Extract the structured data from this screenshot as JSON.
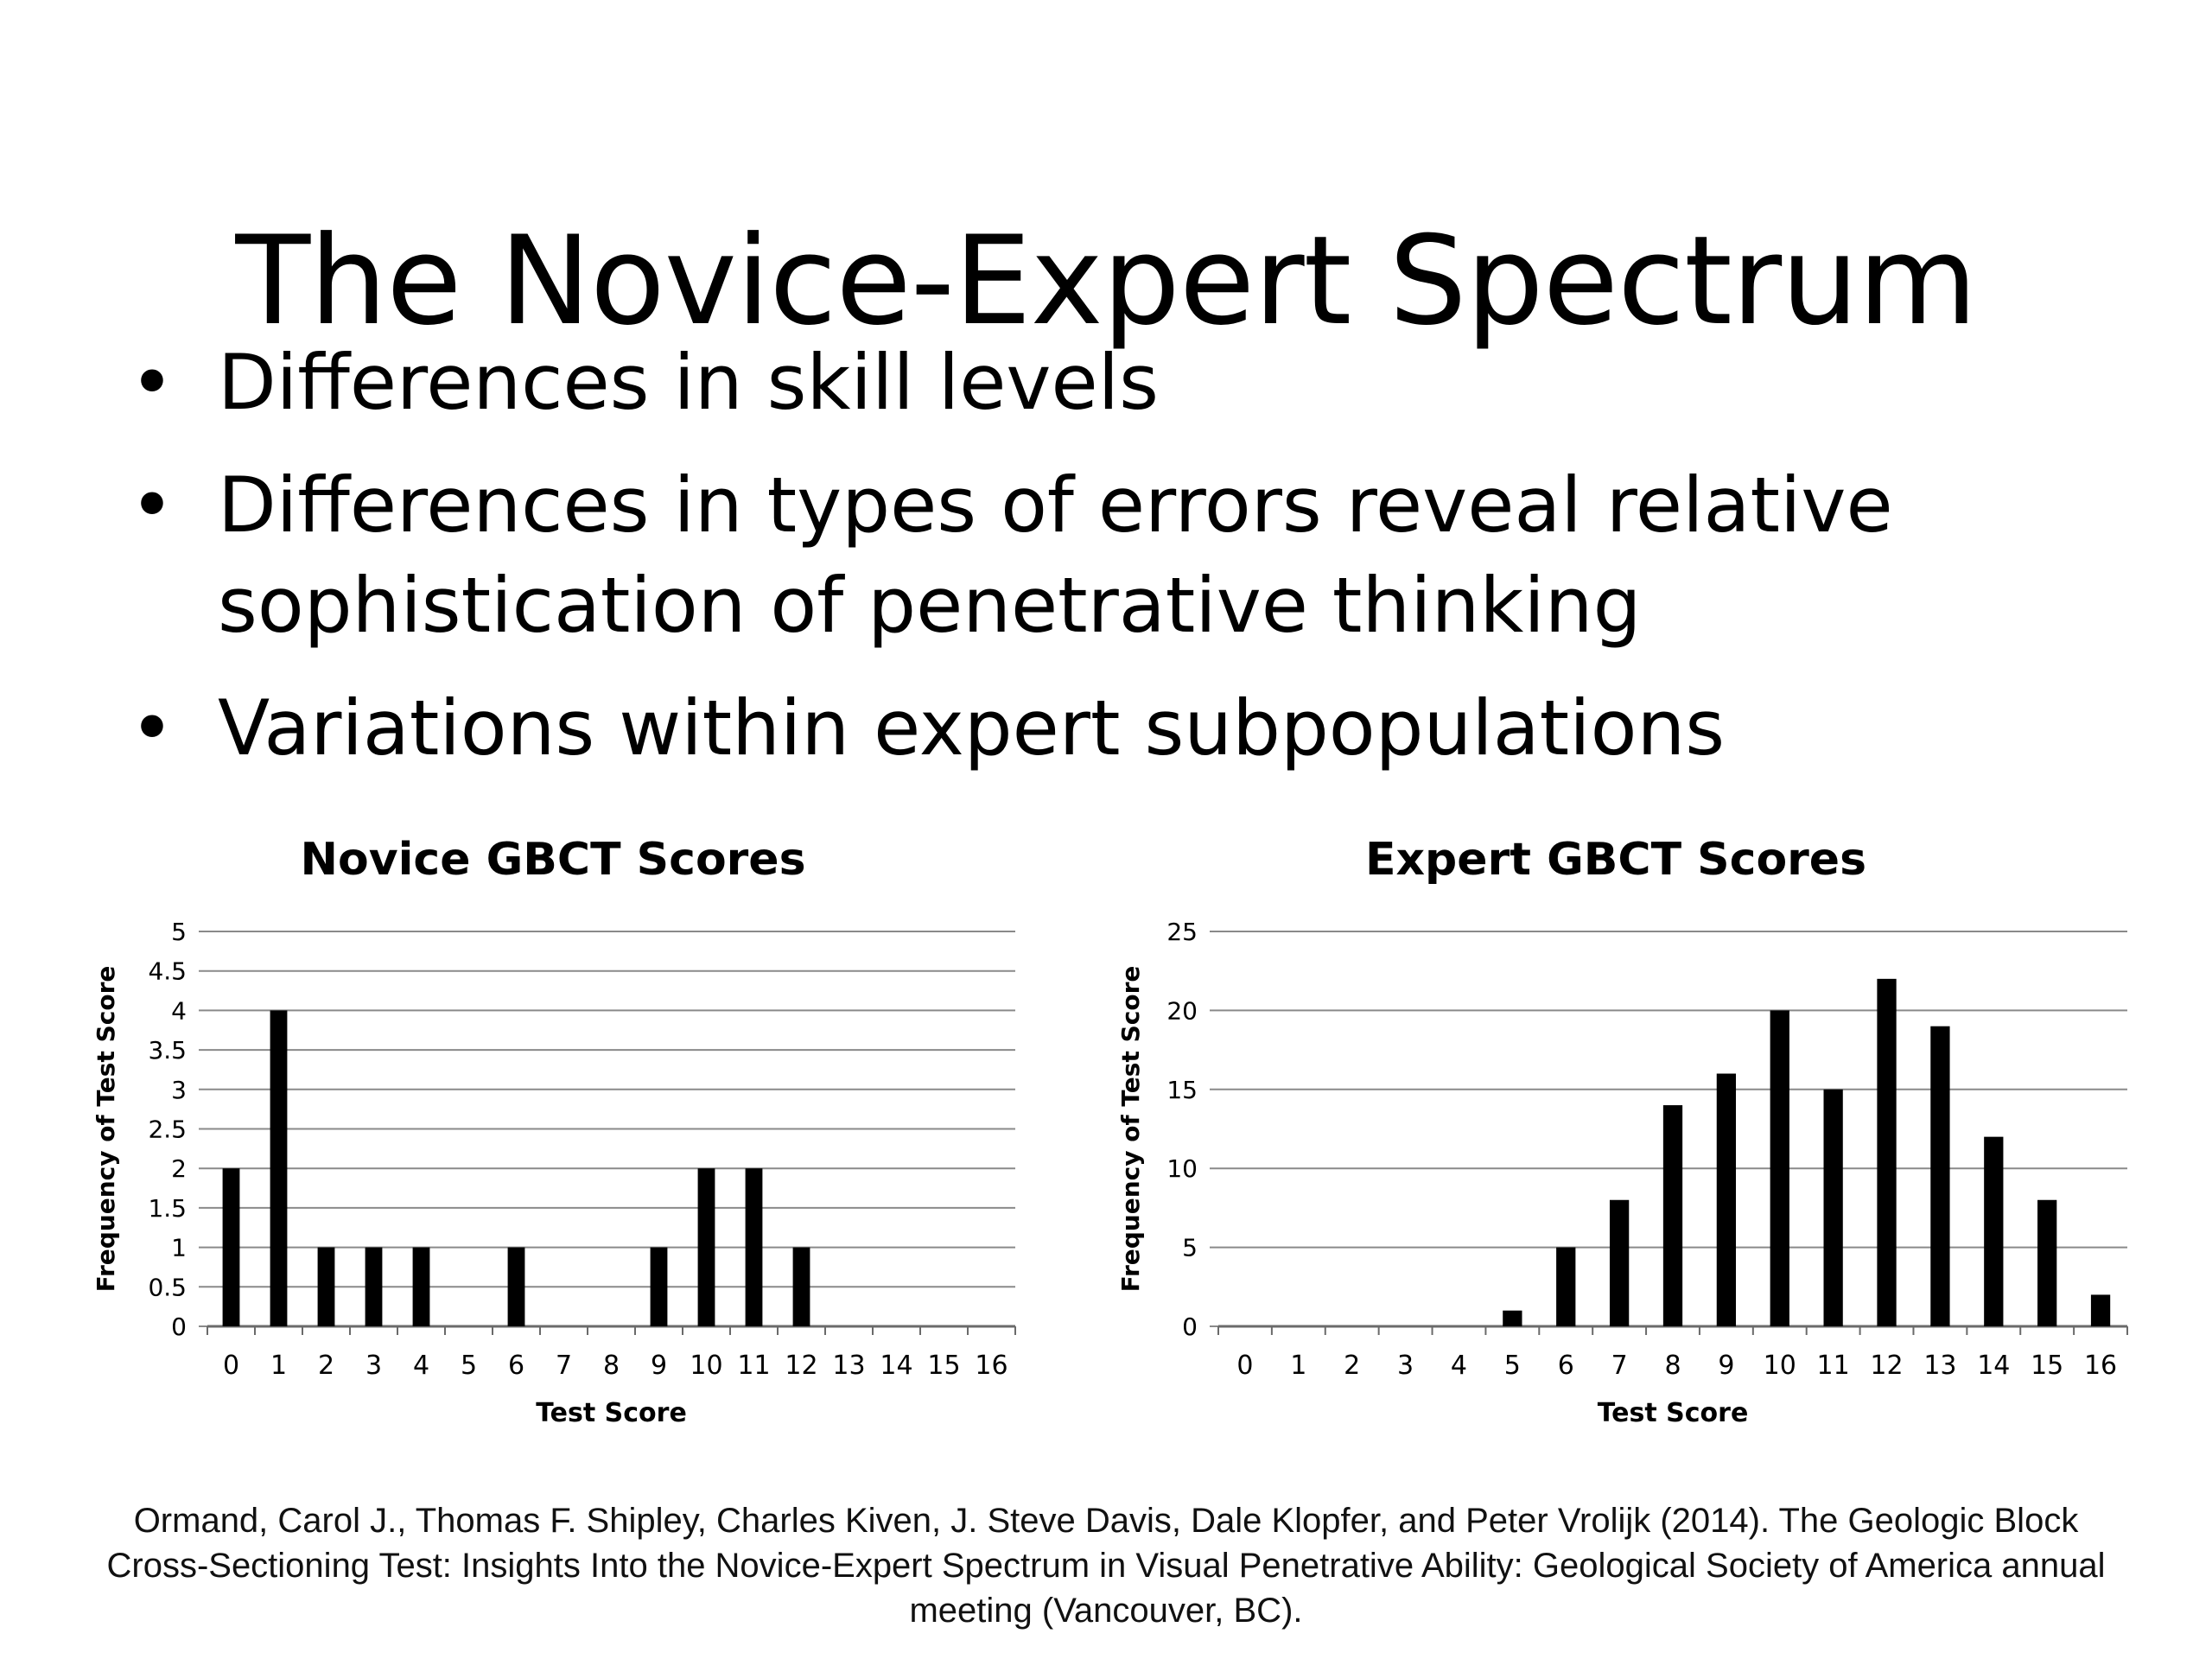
{
  "slide": {
    "title": "The Novice-Expert Spectrum",
    "bullets": [
      "Differences in skill levels",
      "Differences in types of errors reveal relative sophistication of penetrative thinking",
      "Variations within expert subpopulations"
    ],
    "bullet_glyph": "•"
  },
  "chart_data": [
    {
      "type": "bar",
      "title": "Novice GBCT Scores",
      "xlabel": "Test Score",
      "ylabel": "Frequency of Test Score",
      "categories": [
        "0",
        "1",
        "2",
        "3",
        "4",
        "5",
        "6",
        "7",
        "8",
        "9",
        "10",
        "11",
        "12",
        "13",
        "14",
        "15",
        "16"
      ],
      "values": [
        2,
        4,
        1,
        1,
        1,
        0,
        1,
        0,
        0,
        1,
        2,
        2,
        1,
        0,
        0,
        0,
        0
      ],
      "ylim": [
        0,
        5
      ],
      "yticks": [
        "0",
        "0.5",
        "1",
        "1.5",
        "2",
        "2.5",
        "3",
        "3.5",
        "4",
        "4.5",
        "5"
      ],
      "grid": true,
      "bar_color": "#000000"
    },
    {
      "type": "bar",
      "title": "Expert GBCT Scores",
      "xlabel": "Test Score",
      "ylabel": "Frequency of Test Score",
      "categories": [
        "0",
        "1",
        "2",
        "3",
        "4",
        "5",
        "6",
        "7",
        "8",
        "9",
        "10",
        "11",
        "12",
        "13",
        "14",
        "15",
        "16"
      ],
      "values": [
        0,
        0,
        0,
        0,
        0,
        1,
        5,
        8,
        14,
        16,
        20,
        15,
        22,
        19,
        12,
        8,
        2
      ],
      "ylim": [
        0,
        25
      ],
      "yticks": [
        "0",
        "5",
        "10",
        "15",
        "20",
        "25"
      ],
      "grid": true,
      "bar_color": "#000000"
    }
  ],
  "citation": "Ormand, Carol J., Thomas F. Shipley, Charles Kiven, J. Steve Davis, Dale Klopfer, and Peter Vrolijk (2014). The Geologic Block Cross-Sectioning Test: Insights Into the Novice-Expert Spectrum in Visual Penetrative Ability: Geological Society of America annual meeting (Vancouver, BC)."
}
